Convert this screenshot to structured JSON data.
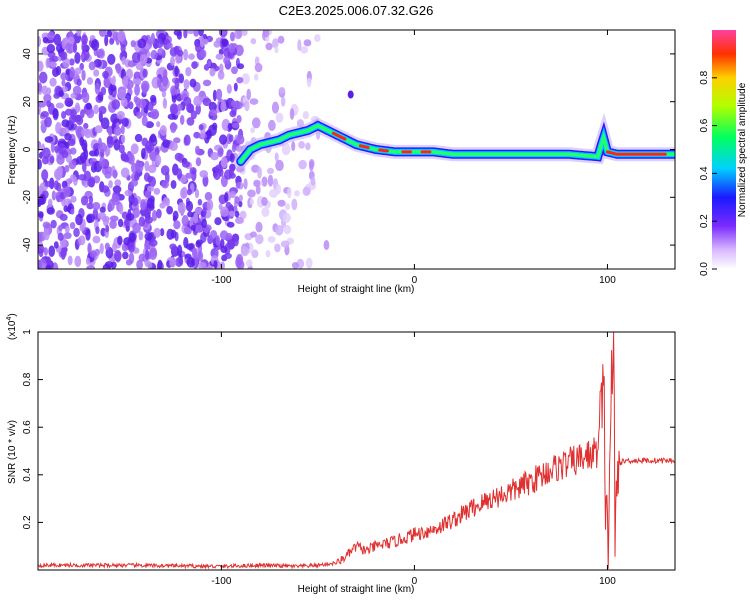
{
  "title": "C2E3.2025.006.07.32.G26",
  "chart_data": [
    {
      "type": "heatmap",
      "xlabel": "Height of straight line (km)",
      "ylabel": "Frequency (Hz)",
      "xlim": [
        -195,
        135
      ],
      "ylim": [
        -50,
        50
      ],
      "xticks": [
        -100,
        0,
        100
      ],
      "yticks": [
        -40,
        -20,
        0,
        20,
        40
      ],
      "colorbar": {
        "label": "Normalized spectral amplitude",
        "range": [
          0,
          1
        ],
        "ticks": [
          0.0,
          0.2,
          0.4,
          0.6,
          0.8
        ]
      },
      "trace": {
        "x": [
          -90,
          -85,
          -80,
          -75,
          -70,
          -65,
          -60,
          -55,
          -50,
          -45,
          -40,
          -35,
          -30,
          -20,
          -10,
          0,
          10,
          20,
          40,
          60,
          80,
          95,
          98,
          100,
          105,
          135
        ],
        "y": [
          -5,
          0,
          2,
          3,
          4,
          6,
          7,
          8,
          10,
          8,
          6,
          4,
          2,
          0,
          -1,
          -1,
          -1,
          -2,
          -2,
          -2,
          -2,
          -3,
          5,
          -1,
          -2,
          -2
        ]
      },
      "grid": false,
      "legend": "none"
    },
    {
      "type": "line",
      "xlabel": "Height of straight line (km)",
      "ylabel": "SNR (10 * v/v)",
      "scale_label": "(x10",
      "scale_exponent": "4",
      "xlim": [
        -195,
        135
      ],
      "ylim": [
        0,
        1.0
      ],
      "xticks": [
        -100,
        0,
        100
      ],
      "yticks": [
        0.2,
        0.4,
        0.6,
        0.8,
        1.0
      ],
      "color": "#e03030",
      "series": [
        {
          "x": [
            -195,
            -150,
            -100,
            -80,
            -60,
            -50,
            -40,
            -35,
            -30,
            -25,
            -20,
            -10,
            0,
            10,
            20,
            30,
            40,
            50,
            60,
            70,
            80,
            90,
            95,
            98,
            100,
            102,
            103,
            104,
            106,
            110,
            120,
            135
          ],
          "y": [
            0.02,
            0.02,
            0.015,
            0.02,
            0.015,
            0.02,
            0.03,
            0.06,
            0.1,
            0.08,
            0.1,
            0.12,
            0.15,
            0.17,
            0.21,
            0.26,
            0.3,
            0.33,
            0.37,
            0.42,
            0.45,
            0.48,
            0.5,
            0.7,
            0.05,
            0.75,
            1.0,
            0.1,
            0.45,
            0.46,
            0.46,
            0.46
          ]
        }
      ],
      "grid": false,
      "legend": "none"
    }
  ]
}
